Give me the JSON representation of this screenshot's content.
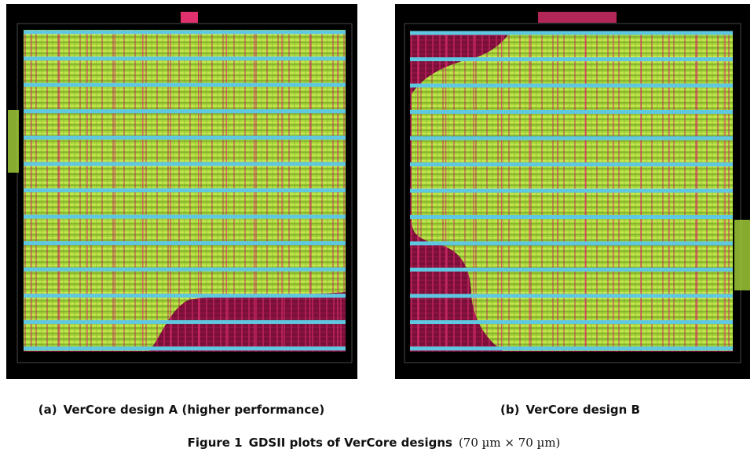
{
  "panels": [
    {
      "label": "(a)",
      "caption": "VerCore design A (higher performance)"
    },
    {
      "label": "(b)",
      "caption": "VerCore design B"
    }
  ],
  "figure": {
    "label": "Figure 1",
    "caption": "GDSII plots of VerCore designs",
    "size": "(70 µm × 70 µm)"
  }
}
